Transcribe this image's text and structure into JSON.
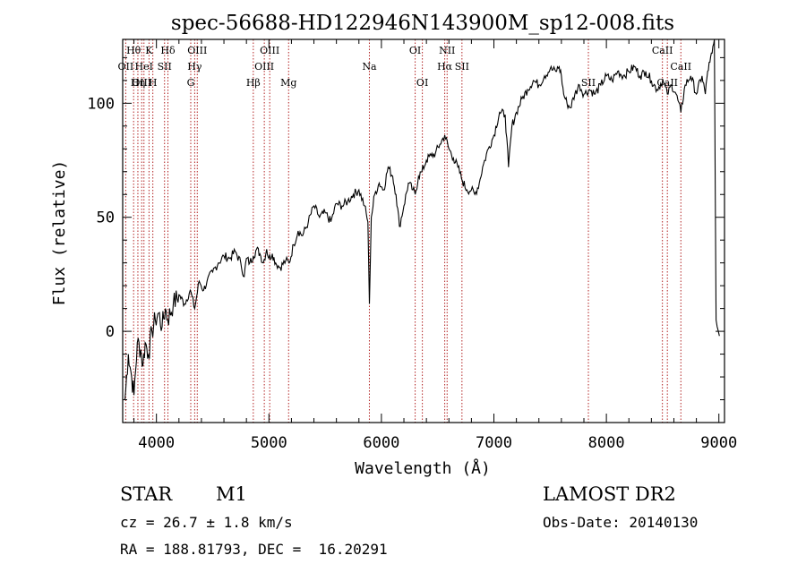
{
  "chart_data": {
    "type": "line",
    "title": "spec-56688-HD122946N143900M_sp12-008.fits",
    "xlabel": "Wavelength (Å)",
    "ylabel": "Flux (relative)",
    "xlim": [
      3700,
      9050
    ],
    "ylim": [
      -40,
      128
    ],
    "xticks": [
      4000,
      5000,
      6000,
      7000,
      8000,
      9000
    ],
    "yticks": [
      0,
      50,
      100
    ],
    "grid": false,
    "line_color": "#000000",
    "marker_color": "#b22222",
    "series": [
      {
        "x": [
          3720,
          3750,
          3780,
          3800,
          3830,
          3860,
          3880,
          3900,
          3930,
          3960,
          3990,
          4020,
          4050,
          4080,
          4100,
          4150,
          4200,
          4250,
          4300,
          4340,
          4380,
          4420,
          4450,
          4500,
          4550,
          4600,
          4650,
          4700,
          4750,
          4780,
          4800,
          4830,
          4861,
          4890,
          4920,
          4950,
          4980,
          5000,
          5030,
          5060,
          5100,
          5150,
          5180,
          5220,
          5260,
          5300,
          5350,
          5400,
          5450,
          5500,
          5550,
          5600,
          5650,
          5700,
          5750,
          5800,
          5850,
          5880,
          5893,
          5910,
          5940,
          5980,
          6020,
          6060,
          6100,
          6130,
          6160,
          6200,
          6240,
          6280,
          6300,
          6330,
          6360,
          6400,
          6440,
          6480,
          6520,
          6563,
          6600,
          6640,
          6680,
          6720,
          6760,
          6800,
          6830,
          6870,
          6900,
          6950,
          7000,
          7050,
          7100,
          7130,
          7160,
          7200,
          7250,
          7300,
          7350,
          7400,
          7450,
          7500,
          7550,
          7580,
          7600,
          7620,
          7650,
          7680,
          7720,
          7760,
          7800,
          7850,
          7900,
          7950,
          8000,
          8050,
          8100,
          8150,
          8200,
          8250,
          8300,
          8350,
          8400,
          8450,
          8500,
          8542,
          8580,
          8620,
          8662,
          8700,
          8750,
          8800,
          8850,
          8880,
          8900,
          8920,
          8940,
          8960,
          8975,
          8985,
          8995,
          9005
        ],
        "values": [
          -30,
          -10,
          -20,
          -28,
          -5,
          -8,
          -15,
          -5,
          -10,
          0,
          5,
          8,
          2,
          10,
          5,
          12,
          16,
          12,
          18,
          10,
          22,
          18,
          22,
          26,
          30,
          33,
          32,
          35,
          30,
          24,
          32,
          30,
          33,
          36,
          34,
          30,
          36,
          32,
          34,
          30,
          28,
          31,
          30,
          38,
          44,
          42,
          48,
          55,
          50,
          52,
          48,
          56,
          55,
          57,
          60,
          62,
          55,
          48,
          12,
          50,
          60,
          65,
          62,
          72,
          68,
          60,
          46,
          55,
          65,
          62,
          60,
          68,
          70,
          75,
          77,
          78,
          82,
          86,
          80,
          76,
          72,
          66,
          62,
          62,
          60,
          65,
          72,
          80,
          86,
          96,
          95,
          72,
          90,
          96,
          102,
          106,
          110,
          108,
          112,
          115,
          114,
          116,
          112,
          104,
          100,
          98,
          104,
          108,
          104,
          106,
          104,
          108,
          112,
          110,
          114,
          112,
          114,
          116,
          112,
          114,
          110,
          106,
          110,
          104,
          108,
          104,
          96,
          108,
          112,
          104,
          112,
          104,
          114,
          118,
          122,
          128,
          5,
          2,
          0,
          -2
        ]
      }
    ],
    "lines": [
      {
        "name": "Hθ",
        "x": 3797,
        "row": 0
      },
      {
        "name": "K",
        "x": 3934,
        "row": 0
      },
      {
        "name": "Hδ",
        "x": 4102,
        "row": 0
      },
      {
        "name": "OIII",
        "x": 4363,
        "row": 0
      },
      {
        "name": "OIII",
        "x": 5007,
        "row": 0
      },
      {
        "name": "OI",
        "x": 6300,
        "row": 0
      },
      {
        "name": "NII",
        "x": 6584,
        "row": 0
      },
      {
        "name": "CaII",
        "x": 8498,
        "row": 0
      },
      {
        "name": "OII",
        "x": 3727,
        "row": 1
      },
      {
        "name": "HeI",
        "x": 3889,
        "row": 1
      },
      {
        "name": "SII",
        "x": 4072,
        "row": 1
      },
      {
        "name": "Hγ",
        "x": 4340,
        "row": 1
      },
      {
        "name": "OIII",
        "x": 4959,
        "row": 1
      },
      {
        "name": "Na",
        "x": 5893,
        "row": 1
      },
      {
        "name": "Hα",
        "x": 6563,
        "row": 1
      },
      {
        "name": "SII",
        "x": 6716,
        "row": 1
      },
      {
        "name": "CaII",
        "x": 8662,
        "row": 1
      },
      {
        "name": "OIII",
        "x": 3869,
        "row": 2
      },
      {
        "name": "Hη",
        "x": 3835,
        "row": 2
      },
      {
        "name": "H",
        "x": 3968,
        "row": 2
      },
      {
        "name": "G",
        "x": 4305,
        "row": 2
      },
      {
        "name": "Hβ",
        "x": 4861,
        "row": 2
      },
      {
        "name": "Mg",
        "x": 5175,
        "row": 2
      },
      {
        "name": "OI",
        "x": 6364,
        "row": 2
      },
      {
        "name": "SII",
        "x": 7840,
        "row": 2
      },
      {
        "name": "CaII",
        "x": 8542,
        "row": 2
      }
    ]
  },
  "info": {
    "object_class": "STAR",
    "subclass": "M1",
    "survey": "LAMOST DR2",
    "cz": "cz = 26.7 ± 1.8 km/s",
    "obs_date": "Obs-Date: 20140130",
    "radec": "RA = 188.81793, DEC =  16.20291"
  }
}
